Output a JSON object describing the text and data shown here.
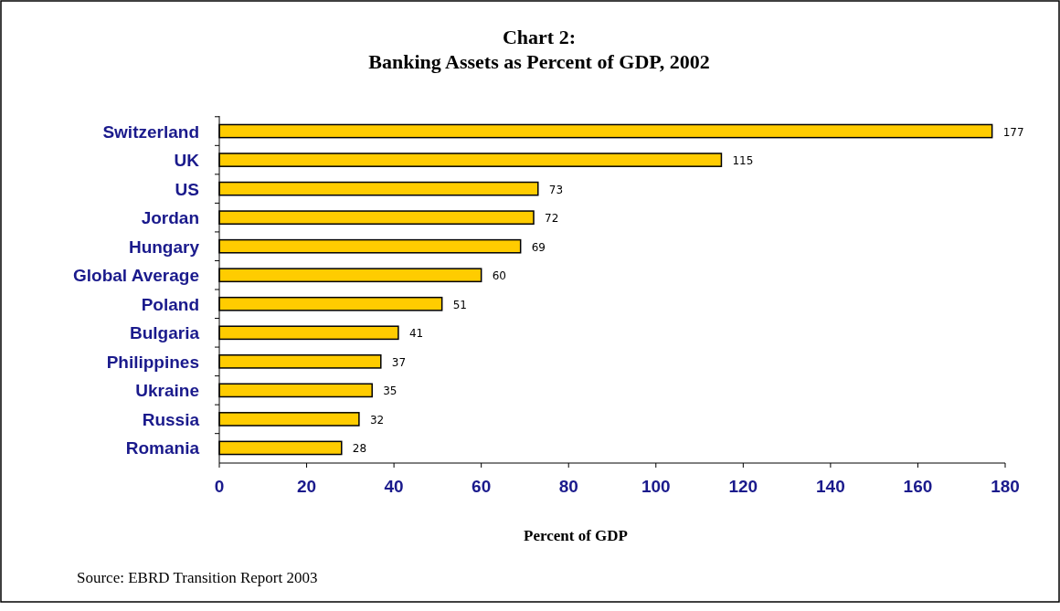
{
  "chart_data": {
    "type": "bar",
    "orientation": "horizontal",
    "title": "Chart 2:\nBanking Assets as Percent of GDP, 2002",
    "xlabel": "Percent of  GDP",
    "categories": [
      "Switzerland",
      "UK",
      "US",
      "Jordan",
      "Hungary",
      "Global Average",
      "Poland",
      "Bulgaria",
      "Philippines",
      "Ukraine",
      "Russia",
      "Romania"
    ],
    "values": [
      177,
      115,
      73,
      72,
      69,
      60,
      51,
      41,
      37,
      35,
      32,
      28
    ],
    "color": "#ffcc00",
    "xlim": [
      0,
      180
    ],
    "xticks": [
      0,
      20,
      40,
      60,
      80,
      100,
      120,
      140,
      160,
      180
    ],
    "data_labels": true,
    "annotations": [
      "Source: EBRD Transition Report 2003"
    ]
  }
}
